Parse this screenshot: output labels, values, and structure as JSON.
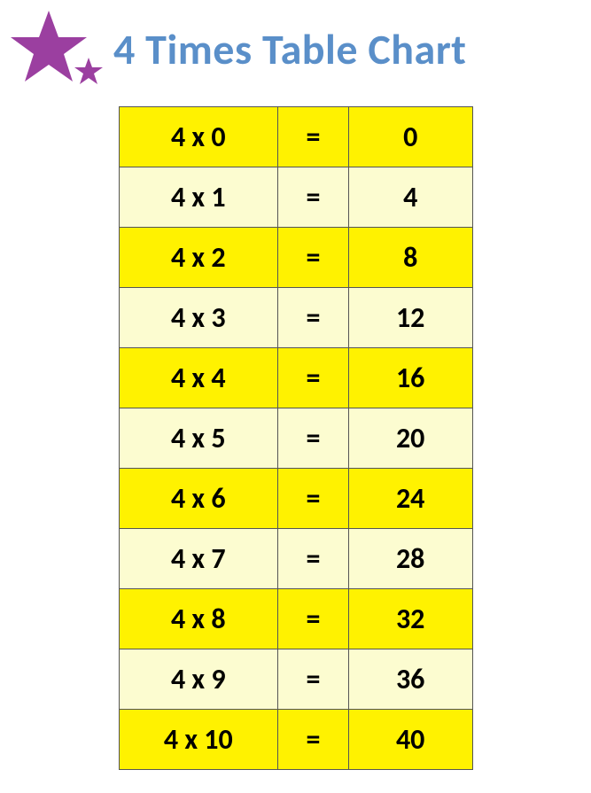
{
  "title": "4 Times Table Chart",
  "title_color": "#5a8fc9",
  "star_color": "#9b3fa0",
  "table": {
    "type": "table",
    "row_color_a": "#fff200",
    "row_color_b": "#fcfcd0",
    "border_color": "#555555",
    "text_color": "#000000",
    "font_size": 32,
    "rows": [
      {
        "expr": "4 x 0",
        "eq": "=",
        "result": "0"
      },
      {
        "expr": "4 x 1",
        "eq": "=",
        "result": "4"
      },
      {
        "expr": "4 x 2",
        "eq": "=",
        "result": "8"
      },
      {
        "expr": "4 x 3",
        "eq": "=",
        "result": "12"
      },
      {
        "expr": "4 x 4",
        "eq": "=",
        "result": "16"
      },
      {
        "expr": "4 x 5",
        "eq": "=",
        "result": "20"
      },
      {
        "expr": "4 x 6",
        "eq": "=",
        "result": "24"
      },
      {
        "expr": "4 x 7",
        "eq": "=",
        "result": "28"
      },
      {
        "expr": "4 x 8",
        "eq": "=",
        "result": "32"
      },
      {
        "expr": "4 x 9",
        "eq": "=",
        "result": "36"
      },
      {
        "expr": "4 x 10",
        "eq": "=",
        "result": "40"
      }
    ]
  }
}
